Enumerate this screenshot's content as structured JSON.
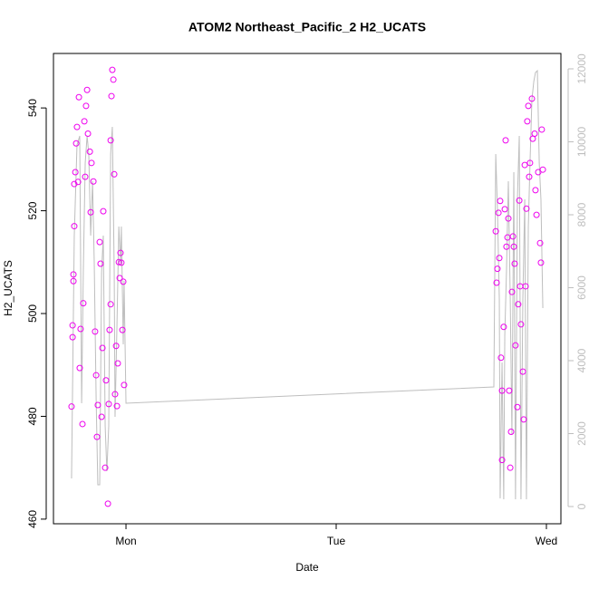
{
  "chart_data": {
    "type": "scatter",
    "title": "ATOM2 Northeast_Pacific_2 H2_UCATS",
    "x_label": "Date",
    "y_label": "H2_UCATS",
    "xlim": [
      -0.345,
      2.069
    ],
    "xticks": [
      {
        "value": 0,
        "label": "Mon"
      },
      {
        "value": 1,
        "label": "Tue"
      },
      {
        "value": 2,
        "label": "Wed"
      }
    ],
    "ylim": [
      459.1,
      550.6
    ],
    "yticks": [
      460,
      480,
      500,
      520,
      540
    ],
    "y2lim": [
      -472,
      12422
    ],
    "y2ticks": [
      0,
      2000,
      4000,
      6000,
      8000,
      10000,
      12000
    ],
    "y2_color": "#bebebe",
    "series": [
      {
        "type": "scatter",
        "color": "#ee00ee",
        "x": [
          -0.259,
          -0.254,
          -0.254,
          -0.25,
          -0.25,
          -0.246,
          -0.246,
          -0.241,
          -0.237,
          -0.233,
          -0.228,
          -0.224,
          -0.22,
          -0.216,
          -0.207,
          -0.203,
          -0.198,
          -0.194,
          -0.19,
          -0.185,
          -0.181,
          -0.172,
          -0.168,
          -0.164,
          -0.155,
          -0.147,
          -0.142,
          -0.138,
          -0.134,
          -0.125,
          -0.121,
          -0.116,
          -0.112,
          -0.108,
          -0.099,
          -0.095,
          -0.086,
          -0.082,
          -0.078,
          -0.073,
          -0.073,
          -0.069,
          -0.065,
          -0.06,
          -0.056,
          -0.052,
          -0.047,
          -0.043,
          -0.039,
          -0.034,
          -0.03,
          -0.026,
          -0.022,
          -0.017,
          -0.013,
          -0.009,
          1.759,
          1.763,
          1.767,
          1.772,
          1.776,
          1.78,
          1.784,
          1.789,
          1.789,
          1.797,
          1.802,
          1.806,
          1.81,
          1.815,
          1.819,
          1.823,
          1.828,
          1.832,
          1.836,
          1.841,
          1.845,
          1.849,
          1.853,
          1.862,
          1.866,
          1.871,
          1.875,
          1.879,
          1.888,
          1.892,
          1.897,
          1.901,
          1.905,
          1.909,
          1.914,
          1.918,
          1.922,
          1.931,
          1.935,
          1.944,
          1.948,
          1.953,
          1.961,
          1.97,
          1.974,
          1.978,
          1.983
        ],
        "values": [
          481.9,
          495.4,
          497.7,
          506.3,
          507.6,
          517,
          525.2,
          527.5,
          533.1,
          536.3,
          525.6,
          542.1,
          489.4,
          497,
          478.5,
          502,
          537.4,
          526.6,
          540.4,
          543.5,
          535,
          531.5,
          519.7,
          529.3,
          525.7,
          496.5,
          488,
          476,
          482.2,
          513.9,
          509.7,
          479.9,
          493.3,
          519.9,
          470,
          487,
          463,
          482.4,
          496.8,
          501.8,
          533.7,
          542.3,
          547.4,
          545.5,
          527.1,
          484.3,
          493.7,
          482,
          490.3,
          510,
          506.9,
          511.8,
          509.9,
          496.8,
          506.2,
          486.1,
          516,
          506,
          508.7,
          519.6,
          510.8,
          521.9,
          491.4,
          485,
          471.5,
          497.4,
          520.3,
          533.7,
          513,
          514.8,
          518.5,
          485,
          470,
          477,
          504.2,
          515,
          513,
          509.7,
          493.8,
          481.8,
          501.8,
          522,
          505.3,
          497.9,
          488.7,
          479.4,
          528.9,
          505.3,
          520.4,
          537.4,
          540.4,
          526.6,
          529.3,
          541.8,
          534,
          535,
          524,
          519.2,
          527.5,
          513.7,
          509.9,
          535.8,
          528
        ]
      },
      {
        "type": "line",
        "axis": "y2",
        "color": "#bebebe",
        "x": [
          -0.259,
          -0.246,
          -0.233,
          -0.22,
          -0.211,
          -0.203,
          -0.194,
          -0.185,
          -0.177,
          -0.168,
          -0.159,
          -0.151,
          -0.142,
          -0.134,
          -0.125,
          -0.116,
          -0.108,
          -0.099,
          -0.091,
          -0.082,
          -0.073,
          -0.065,
          -0.056,
          -0.052,
          -0.043,
          -0.034,
          -0.026,
          -0.022,
          -0.013,
          -0.009,
          0.0,
          1.75,
          1.759,
          1.767,
          1.776,
          1.78,
          1.789,
          1.797,
          1.802,
          1.81,
          1.819,
          1.828,
          1.836,
          1.845,
          1.853,
          1.862,
          1.871,
          1.879,
          1.888,
          1.897,
          1.905,
          1.914,
          1.922,
          1.931,
          1.94,
          1.948,
          1.957,
          1.966,
          1.974,
          1.983
        ],
        "values": [
          770,
          7429,
          9913,
          10162,
          2832,
          6435,
          9416,
          10162,
          9665,
          7429,
          8919,
          6683,
          2957,
          596,
          596,
          6435,
          7429,
          2211,
          969,
          2211,
          9665,
          10410,
          6435,
          2460,
          4944,
          7677,
          6683,
          7677,
          4447,
          6186,
          2832,
          3280,
          9665,
          8174,
          5690,
          224,
          3950,
          199,
          4696,
          6435,
          8919,
          5690,
          1963,
          9168,
          199,
          8422,
          10162,
          199,
          5690,
          8422,
          199,
          7677,
          9416,
          11155,
          11652,
          11901,
          11950,
          9416,
          8422,
          5441
        ]
      }
    ]
  }
}
